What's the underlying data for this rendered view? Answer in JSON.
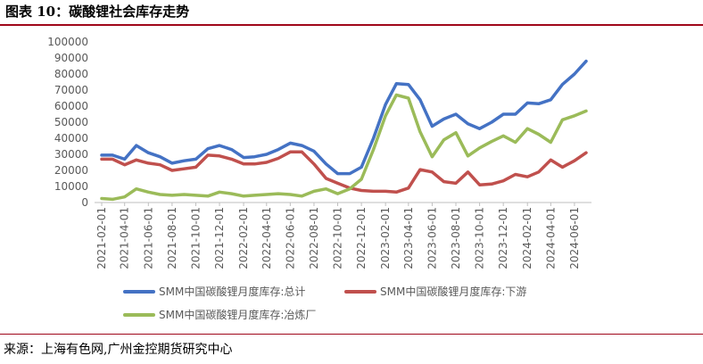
{
  "figure_title": "图表 10：碳酸锂社会库存走势",
  "source": "来源：上海有色网,广州金控期货研究中心",
  "chart_data": {
    "type": "line",
    "ylim": [
      0,
      100000
    ],
    "yticks": [
      "0",
      "10000",
      "20000",
      "30000",
      "40000",
      "50000",
      "60000",
      "70000",
      "80000",
      "90000",
      "100000"
    ],
    "x_labels": [
      "2021-02-01",
      "2021-04-01",
      "2021-06-01",
      "2021-08-01",
      "2021-10-01",
      "2021-12-01",
      "2022-02-01",
      "2022-04-01",
      "2022-06-01",
      "2022-08-01",
      "2022-10-01",
      "2022-12-01",
      "2023-02-01",
      "2023-04-01",
      "2023-06-01",
      "2023-08-01",
      "2023-10-01",
      "2023-12-01",
      "2024-02-01",
      "2024-04-01",
      "2024-06-01"
    ],
    "x": [
      "2021-02-01",
      "2021-03-01",
      "2021-04-01",
      "2021-05-01",
      "2021-06-01",
      "2021-07-01",
      "2021-08-01",
      "2021-09-01",
      "2021-10-01",
      "2021-11-01",
      "2021-12-01",
      "2022-01-01",
      "2022-02-01",
      "2022-03-01",
      "2022-04-01",
      "2022-05-01",
      "2022-06-01",
      "2022-07-01",
      "2022-08-01",
      "2022-09-01",
      "2022-10-01",
      "2022-11-01",
      "2022-12-01",
      "2023-01-01",
      "2023-02-01",
      "2023-03-01",
      "2023-04-01",
      "2023-05-01",
      "2023-06-01",
      "2023-07-01",
      "2023-08-01",
      "2023-09-01",
      "2023-10-01",
      "2023-11-01",
      "2023-12-01",
      "2024-01-01",
      "2024-02-01",
      "2024-03-01",
      "2024-04-01",
      "2024-05-01",
      "2024-06-01",
      "2024-07-01"
    ],
    "grid": false,
    "legend_position": "bottom",
    "series": [
      {
        "name": "SMM中国碳酸锂月度库存:总计",
        "color": "#4472c4",
        "values": [
          29500,
          29500,
          27000,
          35500,
          31000,
          28500,
          24500,
          26000,
          27000,
          33500,
          35500,
          33000,
          28000,
          28500,
          30000,
          33000,
          37000,
          35500,
          32000,
          24000,
          18000,
          18000,
          22000,
          40000,
          61000,
          74000,
          73500,
          64000,
          47500,
          52000,
          55000,
          49000,
          46000,
          50000,
          55000,
          55000,
          62000,
          61500,
          64000,
          73500,
          80000,
          88000
        ]
      },
      {
        "name": "SMM中国碳酸锂月度库存:下游",
        "color": "#c0504d",
        "values": [
          27000,
          27000,
          23500,
          26500,
          24500,
          23500,
          20000,
          21000,
          22000,
          29500,
          29000,
          27000,
          24000,
          24000,
          25000,
          27500,
          31500,
          31500,
          24000,
          15000,
          12000,
          9000,
          7500,
          7000,
          7000,
          6500,
          9000,
          20500,
          19000,
          13000,
          12000,
          19000,
          11000,
          11500,
          13500,
          17500,
          16000,
          19000,
          26500,
          22000,
          26000,
          31000
        ]
      },
      {
        "name": "SMM中国碳酸锂月度库存:冶炼厂",
        "color": "#9bbb59",
        "values": [
          2500,
          2000,
          3500,
          8500,
          6500,
          5000,
          4500,
          5000,
          4500,
          4000,
          6500,
          5500,
          4000,
          4500,
          5000,
          5500,
          5000,
          4000,
          7000,
          8500,
          5500,
          8500,
          14500,
          33000,
          54000,
          67000,
          65000,
          44000,
          28500,
          39000,
          43500,
          29000,
          34000,
          38000,
          41500,
          37500,
          46000,
          42500,
          37500,
          51500,
          54000,
          57000
        ]
      }
    ]
  }
}
